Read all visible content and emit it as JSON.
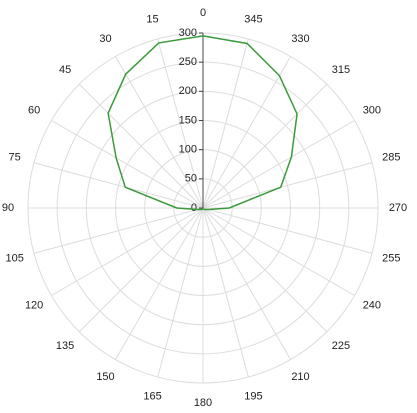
{
  "chart_data": {
    "type": "polar-line",
    "x": [
      0,
      15,
      30,
      45,
      60,
      75,
      90,
      105,
      120,
      135,
      150,
      165,
      180,
      195,
      210,
      225,
      240,
      255,
      270,
      285,
      300,
      315,
      330,
      345
    ],
    "series": [
      {
        "color": "#3a9a3a",
        "values": [
          295,
          293,
          265,
          230,
          172,
          138,
          45,
          10,
          5,
          3,
          2,
          2,
          2,
          2,
          2,
          3,
          5,
          10,
          45,
          138,
          175,
          228,
          262,
          292
        ]
      }
    ],
    "angle_ticks": [
      0,
      15,
      30,
      45,
      60,
      75,
      90,
      105,
      120,
      135,
      150,
      165,
      180,
      195,
      210,
      225,
      240,
      255,
      270,
      285,
      300,
      315,
      330,
      345
    ],
    "rlim": [
      0,
      300
    ],
    "rticks": [
      0,
      50,
      100,
      150,
      200,
      250,
      300
    ],
    "grid": true
  }
}
